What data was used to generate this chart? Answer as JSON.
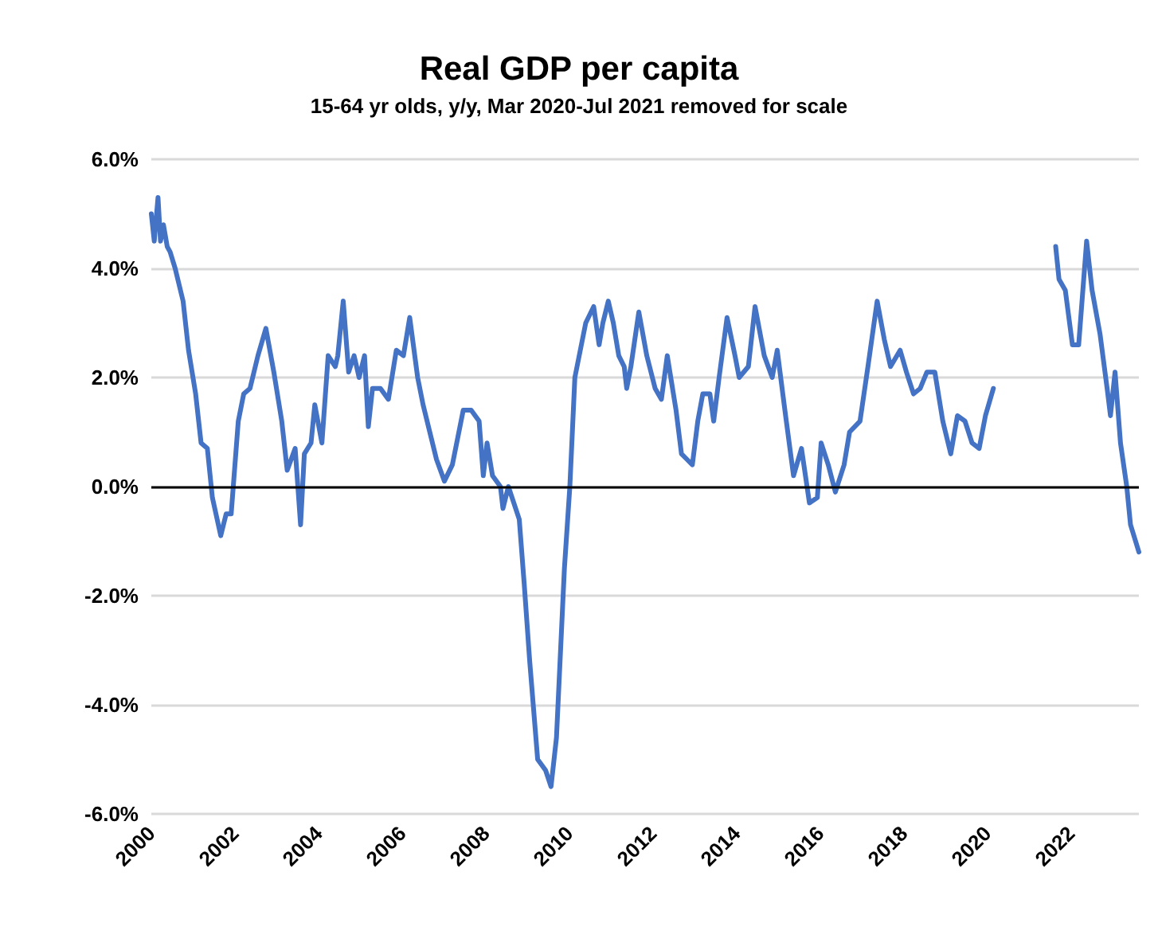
{
  "chart_data": {
    "type": "line",
    "title": "Real GDP per capita",
    "subtitle": "15-64 yr olds, y/y, Mar 2020-Jul 2021 removed for scale",
    "x": [
      2000.0,
      2000.07,
      2000.16,
      2000.22,
      2000.29,
      2000.38,
      2000.45,
      2000.57,
      2000.76,
      2000.89,
      2001.06,
      2001.19,
      2001.34,
      2001.46,
      2001.66,
      2001.79,
      2001.91,
      2002.08,
      2002.21,
      2002.36,
      2002.55,
      2002.74,
      2002.93,
      2003.12,
      2003.25,
      2003.44,
      2003.57,
      2003.66,
      2003.82,
      2003.91,
      2004.08,
      2004.23,
      2004.4,
      2004.46,
      2004.59,
      2004.72,
      2004.85,
      2004.97,
      2005.1,
      2005.19,
      2005.29,
      2005.48,
      2005.67,
      2005.86,
      2006.03,
      2006.18,
      2006.37,
      2006.5,
      2006.82,
      2007.01,
      2007.2,
      2007.46,
      2007.65,
      2007.84,
      2007.94,
      2008.03,
      2008.16,
      2008.35,
      2008.41,
      2008.54,
      2008.67,
      2008.8,
      2008.92,
      2009.05,
      2009.24,
      2009.43,
      2009.56,
      2009.69,
      2009.88,
      2010.01,
      2010.13,
      2010.26,
      2010.39,
      2010.58,
      2010.71,
      2010.8,
      2010.93,
      2011.05,
      2011.18,
      2011.31,
      2011.37,
      2011.47,
      2011.66,
      2011.85,
      2012.05,
      2012.2,
      2012.34,
      2012.55,
      2012.68,
      2012.81,
      2012.94,
      2013.07,
      2013.19,
      2013.36,
      2013.45,
      2013.58,
      2013.77,
      2013.96,
      2014.06,
      2014.28,
      2014.44,
      2014.66,
      2014.85,
      2014.97,
      2015.17,
      2015.36,
      2015.55,
      2015.74,
      2015.93,
      2016.02,
      2016.19,
      2016.36,
      2016.57,
      2016.7,
      2016.95,
      2017.14,
      2017.36,
      2017.53,
      2017.68,
      2017.91,
      2018.06,
      2018.23,
      2018.39,
      2018.55,
      2018.74,
      2018.93,
      2019.12,
      2019.28,
      2019.46,
      2019.63,
      2019.8,
      2019.95,
      2020.14,
      2021.0,
      2021.63,
      2021.71,
      2021.86,
      2022.03,
      2022.18,
      2022.37,
      2022.5,
      2022.69,
      2022.86,
      2022.94,
      2023.05,
      2023.18,
      2023.33,
      2023.42,
      2023.62
    ],
    "series": [
      {
        "color": "#4472c4",
        "values": [
          5.0,
          4.5,
          5.3,
          4.5,
          4.8,
          4.4,
          4.3,
          4.0,
          3.4,
          2.5,
          1.7,
          0.8,
          0.7,
          -0.2,
          -0.9,
          -0.5,
          -0.5,
          1.2,
          1.7,
          1.8,
          2.4,
          2.9,
          2.1,
          1.2,
          0.3,
          0.7,
          -0.7,
          0.6,
          0.8,
          1.5,
          0.8,
          2.4,
          2.2,
          2.4,
          3.4,
          2.1,
          2.4,
          2.0,
          2.4,
          1.1,
          1.8,
          1.8,
          1.6,
          2.5,
          2.4,
          3.1,
          2.0,
          1.5,
          0.5,
          0.1,
          0.4,
          1.4,
          1.4,
          1.2,
          0.2,
          0.8,
          0.2,
          0.0,
          -0.4,
          0.0,
          -0.3,
          -0.6,
          -1.8,
          -3.2,
          -5.0,
          -5.2,
          -5.5,
          -4.6,
          -1.5,
          0.0,
          2.0,
          2.5,
          3.0,
          3.3,
          2.6,
          3.0,
          3.4,
          3.0,
          2.4,
          2.2,
          1.8,
          2.2,
          3.2,
          2.4,
          1.8,
          1.6,
          2.4,
          1.4,
          0.6,
          0.5,
          0.4,
          1.2,
          1.7,
          1.7,
          1.2,
          2.0,
          3.1,
          2.4,
          2.0,
          2.2,
          3.3,
          2.4,
          2.0,
          2.5,
          1.3,
          0.2,
          0.7,
          -0.3,
          -0.2,
          0.8,
          0.4,
          -0.1,
          0.4,
          1.0,
          1.2,
          2.2,
          3.4,
          2.7,
          2.2,
          2.5,
          2.1,
          1.7,
          1.8,
          2.1,
          2.1,
          1.2,
          0.6,
          1.3,
          1.2,
          0.8,
          0.7,
          1.3,
          1.8,
          null,
          4.4,
          3.8,
          3.6,
          2.6,
          2.6,
          4.5,
          3.6,
          2.8,
          1.8,
          1.3,
          2.1,
          0.8,
          0.0,
          -0.7,
          -1.2
        ]
      }
    ],
    "xlim": [
      2000,
      2023.62
    ],
    "xticks": [
      2000,
      2002,
      2004,
      2006,
      2008,
      2010,
      2012,
      2014,
      2016,
      2018,
      2020,
      2022
    ],
    "ylim": [
      -6,
      6
    ],
    "yticks": [
      {
        "value": -6,
        "label": "-6.0%"
      },
      {
        "value": -4,
        "label": "-4.0%"
      },
      {
        "value": -2,
        "label": "-2.0%"
      },
      {
        "value": 0,
        "label": "0.0%"
      },
      {
        "value": 2,
        "label": "2.0%"
      },
      {
        "value": 4,
        "label": "4.0%"
      },
      {
        "value": 6,
        "label": "6.0%"
      }
    ],
    "ref_lines": [
      {
        "axis": "y",
        "value": 0,
        "color": "#000000"
      }
    ],
    "grid": "y",
    "marker": "none",
    "line_style": "solid"
  }
}
